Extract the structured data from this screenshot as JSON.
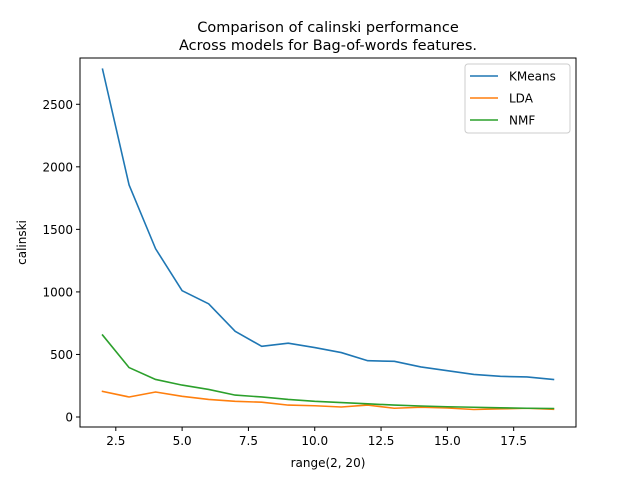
{
  "chart_data": {
    "type": "line",
    "title": "Comparison of calinski performance",
    "subtitle": "Across models for Bag-of-words features.",
    "xlabel": "range(2, 20)",
    "ylabel": "calinski",
    "xlim": [
      1.15,
      19.85
    ],
    "ylim": [
      -80,
      2870
    ],
    "xticks": [
      2.5,
      5.0,
      7.5,
      10.0,
      12.5,
      15.0,
      17.5
    ],
    "xtick_labels": [
      "2.5",
      "5.0",
      "7.5",
      "10.0",
      "12.5",
      "15.0",
      "17.5"
    ],
    "yticks": [
      0,
      500,
      1000,
      1500,
      2000,
      2500
    ],
    "ytick_labels": [
      "0",
      "500",
      "1000",
      "1500",
      "2000",
      "2500"
    ],
    "grid": false,
    "legend_position": "top-right",
    "x": [
      2,
      3,
      4,
      5,
      6,
      7,
      8,
      9,
      10,
      11,
      12,
      13,
      14,
      15,
      16,
      17,
      18,
      19
    ],
    "series": [
      {
        "name": "KMeans",
        "color": "#1f77b4",
        "values": [
          2780,
          1855,
          1345,
          1010,
          905,
          685,
          565,
          590,
          555,
          515,
          450,
          445,
          400,
          370,
          340,
          325,
          320,
          300
        ]
      },
      {
        "name": "LDA",
        "color": "#ff7f0e",
        "values": [
          205,
          160,
          200,
          165,
          140,
          125,
          118,
          95,
          90,
          80,
          95,
          70,
          78,
          72,
          60,
          65,
          70,
          62
        ]
      },
      {
        "name": "NMF",
        "color": "#2ca02c",
        "values": [
          655,
          395,
          300,
          255,
          220,
          175,
          160,
          140,
          125,
          115,
          105,
          95,
          88,
          82,
          78,
          73,
          70,
          68
        ]
      }
    ]
  }
}
